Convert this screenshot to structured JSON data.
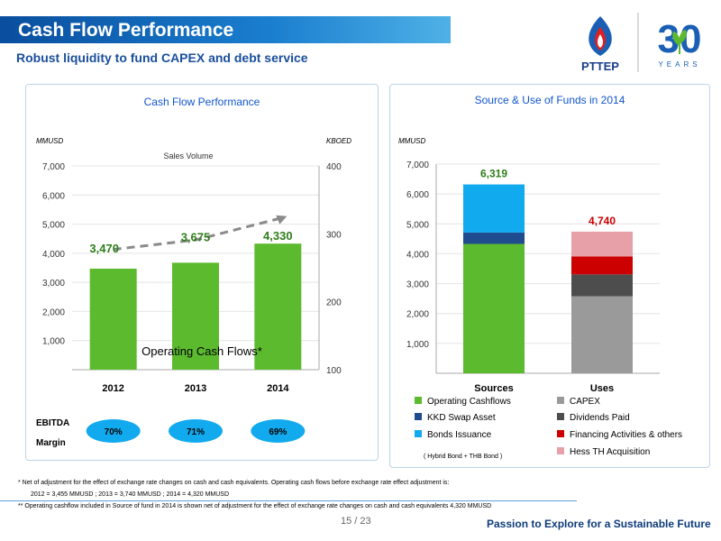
{
  "header": {
    "title": "Cash Flow Performance",
    "subtitle": "Robust liquidity to fund CAPEX and debt service"
  },
  "logo": {
    "brand": "PTTEP",
    "anniversary": "30",
    "years": "YEARS"
  },
  "colors": {
    "green": "#5cba2f",
    "dark_blue": "#1f4b8f",
    "light_blue": "#11aaee",
    "gray": "#9a9a9a",
    "dark_gray": "#4d4d4d",
    "red": "#cc0000",
    "pink": "#e8a0a8",
    "accent": "#1155cc"
  },
  "chart_data": [
    {
      "type": "bar",
      "title": "Cash Flow Performance",
      "ylabel": "MMUSD",
      "y2label": "KBOED",
      "ylim": [
        0,
        7000
      ],
      "y2lim": [
        100,
        400
      ],
      "yticks": [
        "1,000",
        "2,000",
        "3,000",
        "4,000",
        "5,000",
        "6,000",
        "7,000"
      ],
      "y2ticks": [
        "100",
        "200",
        "300",
        "400"
      ],
      "categories": [
        "2012",
        "2013",
        "2014"
      ],
      "series": [
        {
          "name": "Operating Cash Flows*",
          "values": [
            3470,
            3675,
            4330
          ],
          "labels": [
            "3,470",
            "3,675",
            "4,330"
          ]
        },
        {
          "name": "Sales Volume",
          "axis": "secondary",
          "values": [
            277,
            291,
            322
          ]
        }
      ],
      "ebitda": {
        "label_line1": "EBITDA",
        "label_line2": "Margin",
        "values": [
          "70%",
          "71%",
          "69%"
        ]
      }
    },
    {
      "type": "bar",
      "stacked": true,
      "title": "Source & Use of Funds in 2014",
      "ylabel": "MMUSD",
      "ylim": [
        0,
        7000
      ],
      "yticks": [
        "1,000",
        "2,000",
        "3,000",
        "4,000",
        "5,000",
        "6,000",
        "7,000"
      ],
      "categories": [
        "Sources",
        "Uses"
      ],
      "totals": [
        "6,319",
        "4,740"
      ],
      "series": [
        {
          "name": "Operating Cashflows",
          "values": [
            4330,
            0
          ]
        },
        {
          "name": "KKD Swap Asset",
          "values": [
            380,
            0
          ]
        },
        {
          "name": "Bonds Issuance",
          "values": [
            1609,
            0
          ]
        },
        {
          "name": "CAPEX",
          "values": [
            0,
            2580
          ]
        },
        {
          "name": "Dividends Paid",
          "values": [
            0,
            730
          ]
        },
        {
          "name": "Financing Activities & others",
          "values": [
            0,
            600
          ]
        },
        {
          "name": "Hess TH Acquisition",
          "values": [
            0,
            830
          ]
        }
      ],
      "legend_note": "( Hybrid Bond + THB Bond )"
    }
  ],
  "footnotes": {
    "note1": "*   Net of adjustment for the effect of exchange rate changes on cash and cash equivalents. Operating cash flows before exchange rate effect adjustment is:",
    "note1b": "2012 = 3,455 MMUSD ;  2013 = 3,740 MMUSD ;  2014 = 4,320 MMUSD",
    "note2": "**  Operating cashflow included in Source of fund in 2014 is shown net of adjustment for the effect of exchange rate changes on cash and cash equivalents   4,320  MMUSD"
  },
  "footer": {
    "page": "15 / 23",
    "tagline": "Passion to Explore for a Sustainable Future"
  }
}
